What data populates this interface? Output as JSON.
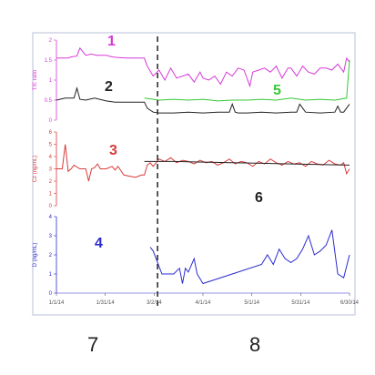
{
  "colors": {
    "magenta": "#d63ad6",
    "black": "#222222",
    "green": "#35c835",
    "red": "#d83a3a",
    "blue": "#2a2ad0",
    "frame": "#b8c0d8"
  },
  "chart_data": [
    {
      "type": "line",
      "panel": 1,
      "ylabel": "T/E ratio",
      "yticks": [
        "0",
        "0.5",
        "1",
        "1.5",
        "2"
      ],
      "ylim": [
        0,
        2
      ],
      "series": [
        {
          "name": "1",
          "color": "magenta",
          "x": [
            0,
            2,
            4,
            5,
            7,
            8,
            10,
            12,
            13,
            14,
            17,
            18,
            19,
            20,
            22,
            24,
            26,
            28,
            30,
            31,
            33,
            35,
            37,
            39,
            41,
            43,
            45,
            47,
            49,
            50,
            52,
            54,
            56,
            58,
            60,
            62,
            64,
            66,
            67,
            69,
            71,
            73,
            75,
            77,
            79,
            80,
            82,
            84,
            86,
            88,
            90,
            92,
            94,
            96,
            98,
            99,
            100
          ],
          "y": [
            1.55,
            1.55,
            1.55,
            1.58,
            1.6,
            1.8,
            1.62,
            1.65,
            1.63,
            1.62,
            1.62,
            1.6,
            1.58,
            1.57,
            1.56,
            1.55,
            1.55,
            1.55,
            1.55,
            1.35,
            1.1,
            1.25,
            1.0,
            1.3,
            1.05,
            1.1,
            1.15,
            0.95,
            1.2,
            1.05,
            1.0,
            1.1,
            0.9,
            1.2,
            1.1,
            1.3,
            1.25,
            0.85,
            1.2,
            1.25,
            1.3,
            1.2,
            1.35,
            1.05,
            1.3,
            1.3,
            1.1,
            1.35,
            1.2,
            1.15,
            1.3,
            1.3,
            1.25,
            1.4,
            1.2,
            1.55,
            1.45
          ]
        },
        {
          "name": "2",
          "color": "black",
          "x": [
            0,
            3,
            6,
            7,
            8,
            10,
            13,
            17,
            20,
            24,
            27,
            30,
            31,
            32,
            33,
            35,
            40,
            45,
            50,
            55,
            59,
            60,
            61,
            62,
            65,
            70,
            75,
            80,
            82,
            83,
            85,
            90,
            95,
            96,
            97,
            98,
            100
          ],
          "y": [
            0.5,
            0.55,
            0.55,
            0.8,
            0.52,
            0.5,
            0.55,
            0.48,
            0.45,
            0.45,
            0.45,
            0.45,
            0.3,
            0.25,
            0.2,
            0.18,
            0.18,
            0.2,
            0.18,
            0.2,
            0.2,
            0.4,
            0.2,
            0.18,
            0.18,
            0.2,
            0.18,
            0.2,
            0.2,
            0.4,
            0.2,
            0.18,
            0.2,
            0.35,
            0.2,
            0.2,
            0.4
          ]
        },
        {
          "name": "5",
          "color": "green",
          "x": [
            30,
            35,
            40,
            45,
            50,
            55,
            60,
            65,
            70,
            75,
            80,
            85,
            90,
            95,
            99,
            100
          ],
          "y": [
            0.55,
            0.5,
            0.52,
            0.5,
            0.52,
            0.48,
            0.5,
            0.5,
            0.52,
            0.5,
            0.55,
            0.5,
            0.52,
            0.5,
            0.55,
            1.5
          ]
        }
      ],
      "labels": [
        {
          "text": "1",
          "color": "magenta"
        },
        {
          "text": "2",
          "color": "black"
        },
        {
          "text": "5",
          "color": "green"
        }
      ]
    },
    {
      "type": "line",
      "panel": 2,
      "ylabel": "Cz (ng/mL)",
      "yticks": [
        "0",
        "1",
        "2",
        "3",
        "4",
        "5",
        "6"
      ],
      "ylim": [
        0,
        6
      ],
      "series": [
        {
          "name": "3",
          "color": "red",
          "x": [
            0,
            2,
            3,
            4,
            5,
            6,
            8,
            10,
            11,
            12,
            13,
            14,
            15,
            17,
            19,
            20,
            21,
            23,
            25,
            27,
            29,
            30,
            31,
            32,
            33,
            35,
            37,
            39,
            41,
            43,
            45,
            47,
            49,
            51,
            53,
            55,
            57,
            59,
            61,
            63,
            65,
            67,
            69,
            71,
            73,
            75,
            77,
            79,
            81,
            83,
            85,
            87,
            89,
            91,
            93,
            95,
            97,
            98,
            99,
            100
          ],
          "y": [
            3.0,
            3.0,
            5.0,
            2.8,
            3.0,
            3.3,
            3.0,
            3.0,
            2.0,
            3.0,
            3.1,
            3.4,
            3.0,
            3.0,
            3.2,
            2.9,
            3.2,
            2.5,
            2.4,
            2.3,
            2.5,
            2.5,
            3.3,
            3.5,
            3.2,
            3.8,
            3.6,
            3.9,
            3.5,
            3.7,
            3.6,
            3.4,
            3.7,
            3.5,
            3.6,
            3.3,
            3.5,
            3.8,
            3.4,
            3.6,
            3.5,
            3.2,
            3.6,
            3.4,
            3.8,
            3.5,
            3.3,
            3.6,
            3.4,
            3.5,
            3.2,
            3.6,
            3.4,
            3.3,
            3.7,
            3.4,
            3.3,
            3.5,
            2.6,
            3.0
          ]
        },
        {
          "name": "6",
          "color": "black",
          "x": [
            30,
            40,
            50,
            60,
            70,
            80,
            90,
            100
          ],
          "y": [
            3.6,
            3.6,
            3.55,
            3.5,
            3.45,
            3.4,
            3.35,
            3.3
          ]
        }
      ],
      "labels": [
        {
          "text": "3",
          "color": "red"
        },
        {
          "text": "6",
          "color": "black"
        }
      ]
    },
    {
      "type": "line",
      "panel": 3,
      "ylabel": "D (ng/mL)",
      "yticks": [
        "0",
        "1",
        "2",
        "3",
        "4"
      ],
      "ylim": [
        0,
        4
      ],
      "xticks": [
        "1/1/14",
        "1/31/14",
        "3/2/14",
        "4/1/14",
        "5/1/14",
        "5/31/14",
        "6/30/14"
      ],
      "series": [
        {
          "name": "4",
          "color": "blue",
          "x": [
            32,
            33,
            34,
            36,
            38,
            40,
            42,
            43,
            44,
            45,
            47,
            48,
            50,
            60,
            70,
            72,
            74,
            76,
            78,
            80,
            82,
            84,
            86,
            88,
            90,
            92,
            94,
            96,
            98,
            100
          ],
          "y": [
            2.4,
            2.2,
            1.8,
            1.0,
            1.0,
            1.0,
            1.3,
            0.5,
            1.3,
            1.1,
            1.8,
            1.0,
            0.5,
            1.0,
            1.5,
            2.0,
            1.5,
            2.3,
            1.8,
            1.6,
            1.8,
            2.3,
            3.0,
            2.0,
            2.2,
            2.5,
            3.3,
            1.0,
            0.8,
            2.0
          ]
        }
      ],
      "labels": [
        {
          "text": "4",
          "color": "blue"
        }
      ]
    }
  ],
  "annotations": {
    "bottom_left": "7",
    "bottom_right": "8"
  }
}
